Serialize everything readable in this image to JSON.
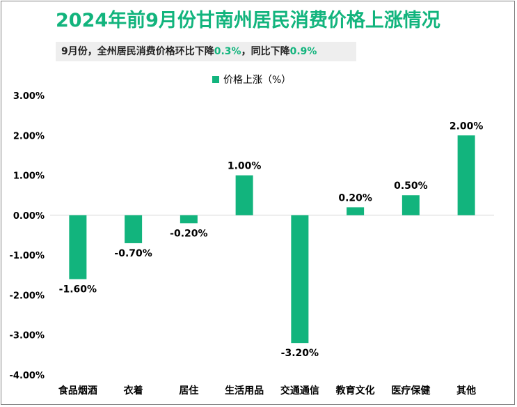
{
  "title": "2024年前9月份甘南州居民消费价格上涨情况",
  "subtitle": {
    "prefix": "9月份，全州居民消费价格环比下降",
    "mom": "0.3%",
    "middle": "，同比下降",
    "yoy": "0.9%"
  },
  "colors": {
    "accent": "#12b47d",
    "bar": "#12b47d",
    "subtitle_bg": "#eeeeee",
    "text": "#000000"
  },
  "chart_data": {
    "type": "bar",
    "categories": [
      "食品烟酒",
      "衣着",
      "居住",
      "生活用品",
      "交通通信",
      "教育文化",
      "医疗保健",
      "其他"
    ],
    "series": [
      {
        "name": "价格上涨（%）",
        "values": [
          -1.6,
          -0.7,
          -0.2,
          1.0,
          -3.2,
          0.2,
          0.5,
          2.0
        ],
        "labels": [
          "-1.60%",
          "-0.70%",
          "-0.20%",
          "1.00%",
          "-3.20%",
          "0.20%",
          "0.50%",
          "2.00%"
        ]
      }
    ],
    "ylim": [
      -4,
      3
    ],
    "yticks": [
      3,
      2,
      1,
      0,
      -1,
      -2,
      -3,
      -4
    ],
    "ytick_labels": [
      "3.00%",
      "2.00%",
      "1.00%",
      "0.00%",
      "-1.00%",
      "-2.00%",
      "-3.00%",
      "-4.00%"
    ],
    "legend": "top-center",
    "grid": false,
    "xlabel": "",
    "ylabel": ""
  }
}
